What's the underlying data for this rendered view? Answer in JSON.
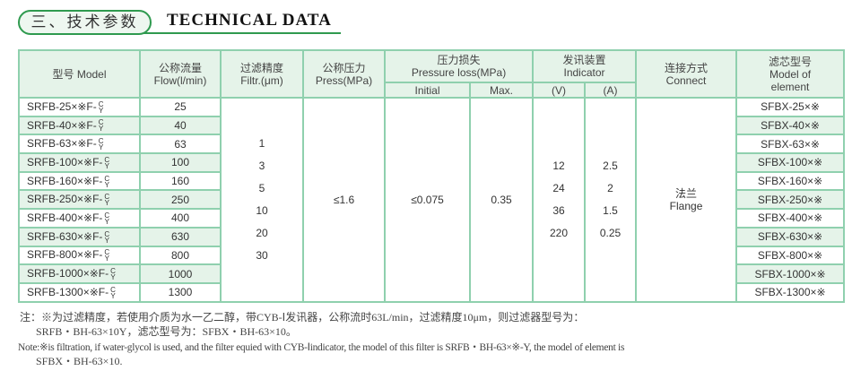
{
  "header": {
    "title_cn": "三、技术参数",
    "title_en": "TECHNICAL DATA"
  },
  "table": {
    "headers": {
      "model": "型号 Model",
      "flow_cn": "公称流量",
      "flow_en": "Flow(l/min)",
      "filtr_cn": "过滤精度",
      "filtr_en": "Filtr.(μm)",
      "press_cn": "公称压力",
      "press_en": "Press(MPa)",
      "ploss_cn": "压力损失",
      "ploss_en": "Pressure loss(MPa)",
      "initial": "Initial",
      "max": "Max.",
      "ind_cn": "发讯装置",
      "ind_en": "Indicator",
      "v": "(V)",
      "a": "(A)",
      "conn_cn": "连接方式",
      "conn_en": "Connect",
      "elem_cn": "滤芯型号",
      "elem_en1": "Model of",
      "elem_en2": "element"
    },
    "rows": [
      {
        "model": "SRFB-25×※F-",
        "flow": "25",
        "element": "SFBX-25×※"
      },
      {
        "model": "SRFB-40×※F-",
        "flow": "40",
        "element": "SFBX-40×※"
      },
      {
        "model": "SRFB-63×※F-",
        "flow": "63",
        "element": "SFBX-63×※"
      },
      {
        "model": "SRFB-100×※F-",
        "flow": "100",
        "element": "SFBX-100×※"
      },
      {
        "model": "SRFB-160×※F-",
        "flow": "160",
        "element": "SFBX-160×※"
      },
      {
        "model": "SRFB-250×※F-",
        "flow": "250",
        "element": "SFBX-250×※"
      },
      {
        "model": "SRFB-400×※F-",
        "flow": "400",
        "element": "SFBX-400×※"
      },
      {
        "model": "SRFB-630×※F-",
        "flow": "630",
        "element": "SFBX-630×※"
      },
      {
        "model": "SRFB-800×※F-",
        "flow": "800",
        "element": "SFBX-800×※"
      },
      {
        "model": "SRFB-1000×※F-",
        "flow": "1000",
        "element": "SFBX-1000×※"
      },
      {
        "model": "SRFB-1300×※F-",
        "flow": "1300",
        "element": "SFBX-1300×※"
      }
    ],
    "suffix_top": "C",
    "suffix_bottom": "Y",
    "filtration": [
      "1",
      "3",
      "5",
      "10",
      "20",
      "30"
    ],
    "pressure": "≤1.6",
    "initial": "≤0.075",
    "max": "0.35",
    "voltage": [
      "12",
      "24",
      "36",
      "220"
    ],
    "current": [
      "2.5",
      "2",
      "1.5",
      "0.25"
    ],
    "connect_cn": "法兰",
    "connect_en": "Flange"
  },
  "notes": {
    "cn1": "注：※为过滤精度，若使用介质为水一乙二醇，带CYB-Ⅰ发讯器，公称流时63L/min，过滤精度10μm，则过滤器型号为：",
    "cn2": "SRFB・BH-63×10Y，滤芯型号为：SFBX・BH-63×10。",
    "en1": "Note:※is filtration, if water-glycol is used, and the filter equied with CYB-Ⅰindicator, the model of this filter is SRFB・BH-63×※-Y, the model of element is",
    "en2": "SFBX・BH-63×10."
  }
}
